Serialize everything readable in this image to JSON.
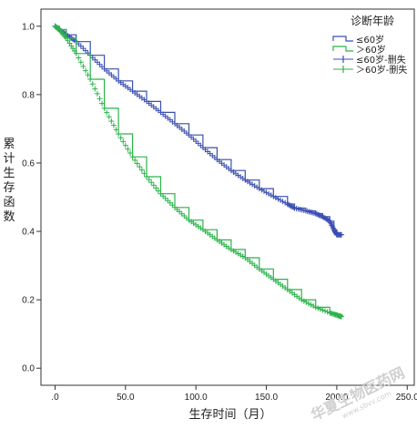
{
  "chart_data": {
    "type": "line",
    "title": "",
    "xlabel": "生存时间（月）",
    "ylabel": "累计生存函数",
    "xlim": [
      -10,
      255
    ],
    "ylim": [
      -0.05,
      1.05
    ],
    "xticks": [
      ".0",
      "50.0",
      "100.0",
      "150.0",
      "200.0",
      "250.0"
    ],
    "xtick_values": [
      0,
      50,
      100,
      150,
      200,
      250
    ],
    "yticks": [
      "0.0",
      "0.2",
      "0.4",
      "0.6",
      "0.8",
      "1.0"
    ],
    "ytick_values": [
      0,
      0.2,
      0.4,
      0.6,
      0.8,
      1.0
    ],
    "grid": false,
    "legend": {
      "title": "诊断年龄",
      "position": "top-right",
      "entries": [
        "≤60岁",
        "＞60岁",
        "≤60岁-删失",
        "＞60岁-删失"
      ]
    },
    "series": [
      {
        "name": "≤60岁",
        "color": "#3a4fb0",
        "step": true,
        "x": [
          0,
          3,
          8,
          15,
          25,
          35,
          45,
          55,
          65,
          75,
          85,
          95,
          105,
          115,
          125,
          135,
          145,
          155,
          165,
          170,
          178,
          185,
          190,
          195,
          198,
          200,
          204
        ],
        "y": [
          1.0,
          0.99,
          0.975,
          0.955,
          0.915,
          0.875,
          0.84,
          0.81,
          0.78,
          0.748,
          0.715,
          0.682,
          0.645,
          0.61,
          0.578,
          0.55,
          0.525,
          0.502,
          0.48,
          0.468,
          0.46,
          0.452,
          0.443,
          0.43,
          0.405,
          0.39,
          0.39
        ]
      },
      {
        "name": "＞60岁",
        "color": "#2bb34a",
        "step": true,
        "x": [
          0,
          3,
          8,
          15,
          25,
          35,
          45,
          55,
          65,
          75,
          85,
          95,
          105,
          115,
          125,
          135,
          145,
          155,
          165,
          175,
          185,
          195,
          200,
          204
        ],
        "y": [
          1.0,
          0.99,
          0.965,
          0.92,
          0.845,
          0.76,
          0.685,
          0.618,
          0.56,
          0.51,
          0.47,
          0.433,
          0.405,
          0.375,
          0.347,
          0.323,
          0.29,
          0.26,
          0.23,
          0.2,
          0.178,
          0.162,
          0.155,
          0.15
        ]
      }
    ]
  },
  "watermark": {
    "text": "华夏生物医药网",
    "url": "www.sbvv.com"
  }
}
